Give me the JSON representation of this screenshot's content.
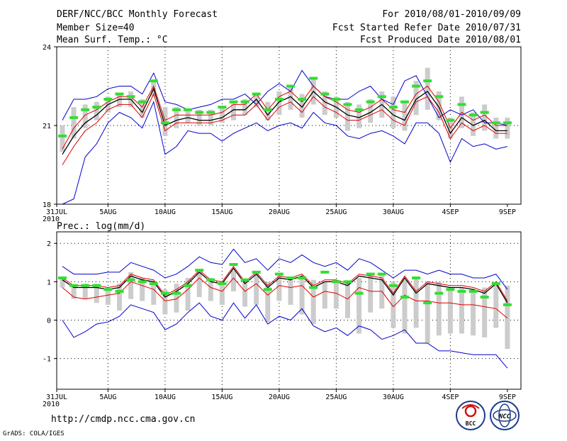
{
  "header": {
    "title": "DERF/NCC/BCC Monthly Forecast",
    "member": "Member Size=40",
    "variable": "Mean Surf. Temp.: °C",
    "period": "For 2010/08/01-2010/09/09",
    "started": "Fcst Started Refer Date 2010/07/31",
    "produced": "Fcst Produced Date 2010/08/01"
  },
  "precip_label": "Prec.: log(mm/d)",
  "footer": {
    "url": "http://cmdp.ncc.cma.gov.cn",
    "credit": "GrADS: COLA/IGES",
    "logo1": "BCC",
    "logo2": "NCC"
  },
  "colors": {
    "max_min": "#0000cc",
    "band": "#dd0000",
    "mean": "#000000",
    "obs": "#33dd33",
    "spread": "#cccccc",
    "grid": "#000000"
  },
  "chart_data": [
    {
      "type": "line",
      "title": "Mean Surf. Temp.: °C",
      "xlabel": "",
      "ylabel": "",
      "x_ticks": [
        "31JUL",
        "5AUG",
        "10AUG",
        "15AUG",
        "20AUG",
        "25AUG",
        "30AUG",
        "4SEP",
        "9SEP"
      ],
      "x_year": "2010",
      "y_ticks": [
        "18",
        "21",
        "24"
      ],
      "ylim": [
        18,
        24
      ],
      "x": [
        1,
        2,
        3,
        4,
        5,
        6,
        7,
        8,
        9,
        10,
        11,
        12,
        13,
        14,
        15,
        16,
        17,
        18,
        19,
        20,
        21,
        22,
        23,
        24,
        25,
        26,
        27,
        28,
        29,
        30,
        31,
        32,
        33,
        34,
        35,
        36,
        37,
        38,
        39,
        40
      ],
      "series": [
        {
          "name": "max",
          "values": [
            21.2,
            22.0,
            22.0,
            22.1,
            22.4,
            22.5,
            22.5,
            22.2,
            23.0,
            21.9,
            21.8,
            21.6,
            21.7,
            21.8,
            22.0,
            22.0,
            22.2,
            21.8,
            22.3,
            22.6,
            22.3,
            23.1,
            22.5,
            22.1,
            22.0,
            22.0,
            22.3,
            22.5,
            22.0,
            21.8,
            22.7,
            22.9,
            22.1,
            21.3,
            21.6,
            21.4,
            21.6,
            21.1,
            21.1,
            21.0
          ]
        },
        {
          "name": "upper",
          "values": [
            20.1,
            20.9,
            21.4,
            21.6,
            21.9,
            22.1,
            22.1,
            21.7,
            22.5,
            21.2,
            21.4,
            21.4,
            21.4,
            21.4,
            21.5,
            21.8,
            21.8,
            22.2,
            21.6,
            22.1,
            22.3,
            21.9,
            22.5,
            22.1,
            21.9,
            21.6,
            21.5,
            21.7,
            22.0,
            21.6,
            21.5,
            22.2,
            22.5,
            21.9,
            20.9,
            21.5,
            21.2,
            21.4,
            21.0,
            21.0
          ]
        },
        {
          "name": "mean",
          "values": [
            19.9,
            20.6,
            21.1,
            21.4,
            21.8,
            22.0,
            22.0,
            21.5,
            22.4,
            21.0,
            21.2,
            21.3,
            21.2,
            21.2,
            21.3,
            21.6,
            21.6,
            22.0,
            21.4,
            21.9,
            22.1,
            21.7,
            22.3,
            21.9,
            21.7,
            21.4,
            21.3,
            21.5,
            21.8,
            21.4,
            21.2,
            22.0,
            22.3,
            21.7,
            20.7,
            21.3,
            21.0,
            21.2,
            20.8,
            20.8
          ]
        },
        {
          "name": "lower",
          "values": [
            19.5,
            20.2,
            20.8,
            21.1,
            21.6,
            21.8,
            21.8,
            21.3,
            22.2,
            20.8,
            21.1,
            21.1,
            21.1,
            21.1,
            21.2,
            21.4,
            21.4,
            21.8,
            21.2,
            21.7,
            21.9,
            21.5,
            22.1,
            21.7,
            21.5,
            21.2,
            21.2,
            21.4,
            21.6,
            21.2,
            21.0,
            21.9,
            22.1,
            21.5,
            20.5,
            21.1,
            20.8,
            21.0,
            20.7,
            20.7
          ]
        },
        {
          "name": "min",
          "values": [
            18.0,
            18.2,
            19.8,
            20.3,
            21.1,
            21.5,
            21.3,
            20.9,
            21.9,
            19.9,
            20.2,
            20.8,
            20.7,
            20.7,
            20.4,
            20.7,
            20.9,
            21.1,
            20.8,
            21.0,
            21.1,
            20.9,
            21.5,
            21.1,
            21.0,
            20.6,
            20.5,
            20.7,
            20.8,
            20.6,
            20.3,
            21.1,
            21.1,
            20.7,
            19.6,
            20.5,
            20.2,
            20.3,
            20.1,
            20.2
          ]
        },
        {
          "name": "obs",
          "values": [
            20.6,
            21.3,
            21.6,
            21.7,
            22.0,
            22.2,
            22.1,
            21.9,
            22.7,
            21.1,
            21.6,
            21.6,
            21.5,
            21.5,
            21.7,
            21.9,
            21.9,
            22.2,
            21.6,
            22.0,
            22.5,
            22.0,
            22.8,
            22.2,
            22.0,
            21.8,
            21.6,
            21.9,
            22.1,
            21.7,
            21.9,
            22.5,
            22.7,
            22.1,
            21.2,
            21.8,
            21.4,
            21.5,
            21.1,
            21.1
          ]
        },
        {
          "name": "spread_top",
          "values": [
            21.0,
            21.7,
            21.8,
            21.9,
            22.1,
            22.2,
            22.3,
            22.0,
            22.7,
            21.7,
            21.7,
            21.6,
            21.6,
            21.6,
            21.7,
            21.9,
            22.0,
            22.2,
            21.9,
            22.3,
            22.5,
            22.2,
            22.8,
            22.3,
            22.1,
            21.9,
            21.8,
            22.0,
            22.3,
            22.1,
            21.9,
            22.7,
            23.2,
            22.3,
            21.3,
            22.1,
            21.5,
            21.8,
            21.3,
            21.3
          ]
        },
        {
          "name": "spread_bottom",
          "values": [
            20.0,
            20.5,
            20.9,
            21.2,
            21.5,
            21.7,
            21.7,
            21.3,
            22.1,
            20.6,
            20.9,
            21.1,
            21.0,
            21.0,
            21.1,
            21.2,
            21.4,
            21.7,
            21.2,
            21.4,
            21.6,
            21.3,
            21.8,
            21.4,
            21.3,
            20.8,
            20.9,
            21.1,
            21.3,
            20.9,
            20.8,
            21.4,
            21.6,
            21.2,
            20.5,
            20.9,
            20.6,
            20.8,
            20.5,
            20.5
          ]
        }
      ]
    },
    {
      "type": "line",
      "title": "Prec.: log(mm/d)",
      "xlabel": "",
      "ylabel": "",
      "x_ticks": [
        "31JUL",
        "5AUG",
        "10AUG",
        "15AUG",
        "20AUG",
        "25AUG",
        "30AUG",
        "4SEP",
        "9SEP"
      ],
      "x_year": "2010",
      "y_ticks": [
        "-1",
        "0",
        "1",
        "2"
      ],
      "ylim": [
        -1.8,
        2.3
      ],
      "x": [
        1,
        2,
        3,
        4,
        5,
        6,
        7,
        8,
        9,
        10,
        11,
        12,
        13,
        14,
        15,
        16,
        17,
        18,
        19,
        20,
        21,
        22,
        23,
        24,
        25,
        26,
        27,
        28,
        29,
        30,
        31,
        32,
        33,
        34,
        35,
        36,
        37,
        38,
        39,
        40
      ],
      "series": [
        {
          "name": "max",
          "values": [
            1.4,
            1.2,
            1.2,
            1.2,
            1.25,
            1.25,
            1.5,
            1.4,
            1.3,
            1.1,
            1.2,
            1.4,
            1.65,
            1.5,
            1.45,
            1.85,
            1.5,
            1.6,
            1.3,
            1.6,
            1.5,
            1.7,
            1.5,
            1.4,
            1.5,
            1.3,
            1.6,
            1.5,
            1.3,
            1.1,
            1.3,
            1.3,
            1.2,
            1.3,
            1.2,
            1.2,
            1.1,
            1.1,
            1.2,
            0.8
          ]
        },
        {
          "name": "upper",
          "values": [
            1.1,
            0.9,
            0.9,
            0.9,
            0.85,
            0.9,
            1.2,
            1.1,
            1.05,
            0.65,
            0.8,
            1.0,
            1.3,
            1.05,
            1.0,
            1.4,
            1.0,
            1.25,
            0.9,
            1.15,
            1.1,
            1.2,
            0.9,
            1.05,
            1.05,
            0.95,
            1.2,
            1.15,
            1.1,
            0.7,
            1.15,
            0.75,
            1.0,
            0.95,
            0.9,
            0.9,
            0.85,
            0.75,
            1.0,
            0.5
          ]
        },
        {
          "name": "mean",
          "values": [
            1.05,
            0.85,
            0.85,
            0.85,
            0.8,
            0.85,
            1.15,
            1.05,
            1.0,
            0.6,
            0.75,
            0.95,
            1.25,
            1.0,
            0.95,
            1.35,
            0.95,
            1.2,
            0.85,
            1.1,
            1.05,
            1.15,
            0.85,
            1.0,
            1.0,
            0.9,
            1.15,
            1.1,
            1.05,
            0.65,
            1.1,
            0.7,
            0.95,
            0.9,
            0.85,
            0.85,
            0.8,
            0.7,
            0.95,
            0.45
          ]
        },
        {
          "name": "lower",
          "values": [
            0.85,
            0.6,
            0.55,
            0.6,
            0.65,
            0.7,
            1.0,
            0.9,
            0.8,
            0.5,
            0.55,
            0.8,
            1.1,
            0.85,
            0.75,
            1.1,
            0.75,
            0.95,
            0.65,
            0.9,
            0.85,
            0.9,
            0.6,
            0.75,
            0.7,
            0.55,
            0.85,
            0.75,
            0.75,
            0.35,
            0.65,
            0.5,
            0.5,
            0.45,
            0.45,
            0.4,
            0.4,
            0.35,
            0.3,
            0.05
          ]
        },
        {
          "name": "min",
          "values": [
            0.0,
            -0.45,
            -0.3,
            -0.1,
            -0.05,
            0.1,
            0.4,
            0.3,
            0.2,
            -0.25,
            -0.1,
            0.2,
            0.45,
            0.1,
            0.0,
            0.45,
            0.05,
            0.4,
            -0.1,
            0.1,
            0.0,
            0.3,
            -0.15,
            -0.3,
            -0.2,
            -0.4,
            -0.15,
            -0.25,
            -0.5,
            -0.4,
            -0.25,
            -0.6,
            -0.6,
            -0.8,
            -0.8,
            -0.85,
            -0.9,
            -0.9,
            -0.9,
            -1.25
          ]
        },
        {
          "name": "obs",
          "values": [
            1.1,
            0.9,
            0.9,
            0.9,
            0.8,
            0.75,
            1.05,
            1.0,
            0.95,
            0.7,
            0.7,
            0.9,
            1.3,
            1.05,
            0.95,
            1.45,
            1.05,
            1.25,
            0.8,
            1.2,
            1.1,
            1.1,
            0.85,
            1.25,
            1.0,
            1.0,
            0.7,
            1.2,
            1.2,
            0.9,
            0.6,
            1.1,
            0.45,
            0.7,
            0.8,
            0.75,
            0.75,
            0.6,
            0.95,
            0.4
          ]
        },
        {
          "name": "spread_top",
          "values": [
            1.1,
            0.9,
            0.95,
            0.95,
            0.8,
            0.95,
            1.25,
            1.1,
            1.0,
            0.8,
            0.95,
            1.1,
            1.25,
            1.1,
            1.0,
            1.3,
            1.05,
            1.2,
            1.0,
            1.15,
            1.05,
            1.1,
            1.05,
            1.0,
            1.0,
            1.0,
            1.1,
            1.15,
            1.2,
            1.0,
            1.05,
            1.1,
            1.0,
            1.0,
            0.85,
            0.85,
            0.8,
            0.85,
            0.95,
            0.9
          ]
        },
        {
          "name": "spread_bottom",
          "values": [
            0.85,
            0.55,
            0.55,
            0.45,
            0.4,
            0.25,
            0.55,
            0.5,
            0.4,
            0.15,
            0.2,
            0.25,
            0.6,
            0.5,
            0.4,
            0.75,
            0.35,
            0.4,
            -0.05,
            0.5,
            0.4,
            0.15,
            -0.1,
            0.3,
            0.3,
            0.05,
            -0.35,
            0.2,
            0.3,
            -0.2,
            -0.35,
            -0.2,
            -0.6,
            -0.4,
            -0.35,
            -0.35,
            -0.4,
            -0.45,
            -0.2,
            -0.75
          ]
        }
      ]
    }
  ]
}
